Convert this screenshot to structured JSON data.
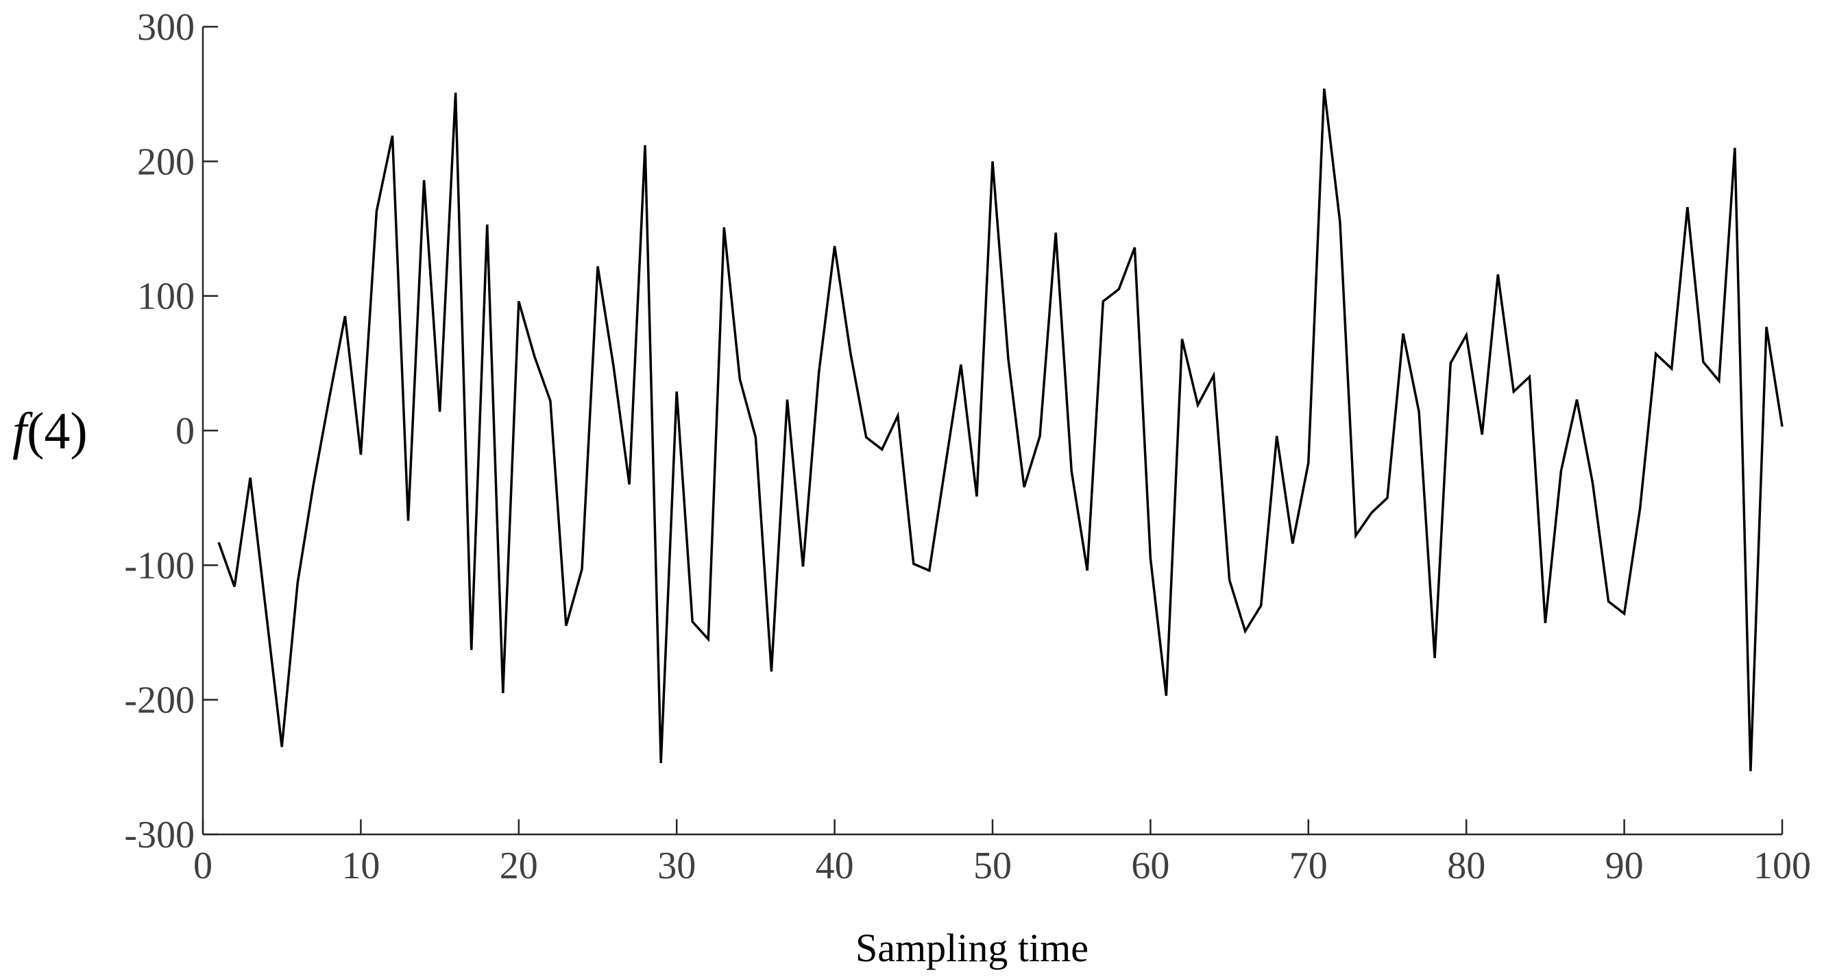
{
  "chart_data": {
    "type": "line",
    "xlabel": "Sampling time",
    "ylabel": "f(4)",
    "ylabel_func": "f",
    "ylabel_arg": "(4)",
    "xlim": [
      0,
      100
    ],
    "ylim": [
      -300,
      300
    ],
    "xticks": [
      0,
      10,
      20,
      30,
      40,
      50,
      60,
      70,
      80,
      90,
      100
    ],
    "xtick_labels": [
      "0",
      "10",
      "20",
      "30",
      "40",
      "50",
      "60",
      "70",
      "80",
      "90",
      "100"
    ],
    "yticks": [
      -300,
      -200,
      -100,
      0,
      100,
      200,
      300
    ],
    "ytick_labels": [
      "-300",
      "-200",
      "-100",
      "0",
      "100",
      "200",
      "300"
    ],
    "grid": false,
    "line_color": "#000000",
    "series": [
      {
        "x": [
          1,
          2,
          3,
          4,
          5,
          6,
          7,
          8,
          9,
          10,
          11,
          12,
          13,
          14,
          15,
          16,
          17,
          18,
          19,
          20,
          21,
          22,
          23,
          24,
          25,
          26,
          27,
          28,
          29,
          30,
          31,
          32,
          33,
          34,
          35,
          36,
          37,
          38,
          39,
          40,
          41,
          42,
          43,
          44,
          45,
          46,
          47,
          48,
          49,
          50,
          51,
          52,
          53,
          54,
          55,
          56,
          57,
          58,
          59,
          60,
          61,
          62,
          63,
          64,
          65,
          66,
          67,
          68,
          69,
          70,
          71,
          72,
          73,
          74,
          75,
          76,
          77,
          78,
          79,
          80,
          81,
          82,
          83,
          84,
          85,
          86,
          87,
          88,
          89,
          90,
          91,
          92,
          93,
          94,
          95,
          96,
          97,
          98,
          99,
          100
        ],
        "values": [
          -83,
          -116,
          -35,
          -135,
          -235,
          -113,
          -40,
          24,
          85,
          -18,
          163,
          219,
          -67,
          186,
          14,
          251,
          -163,
          153,
          -195,
          96,
          55,
          22,
          -145,
          -103,
          122,
          48,
          -40,
          212,
          -247,
          29,
          -142,
          -155,
          151,
          38,
          -5,
          -179,
          23,
          -101,
          43,
          137,
          58,
          -5,
          -14,
          11,
          -99,
          -104,
          -27,
          49,
          -49,
          200,
          53,
          -42,
          -4,
          147,
          -30,
          -104,
          96,
          105,
          136,
          -95,
          -197,
          68,
          19,
          41,
          -111,
          -149,
          -130,
          -4,
          -84,
          -24,
          254,
          155,
          -78,
          -61,
          -50,
          72,
          14,
          -169,
          50,
          71,
          -3,
          116,
          29,
          40,
          -143,
          -30,
          23,
          -39,
          -127,
          -136,
          -58,
          57,
          46,
          166,
          51,
          37,
          210,
          -253,
          77,
          3
        ]
      }
    ]
  }
}
